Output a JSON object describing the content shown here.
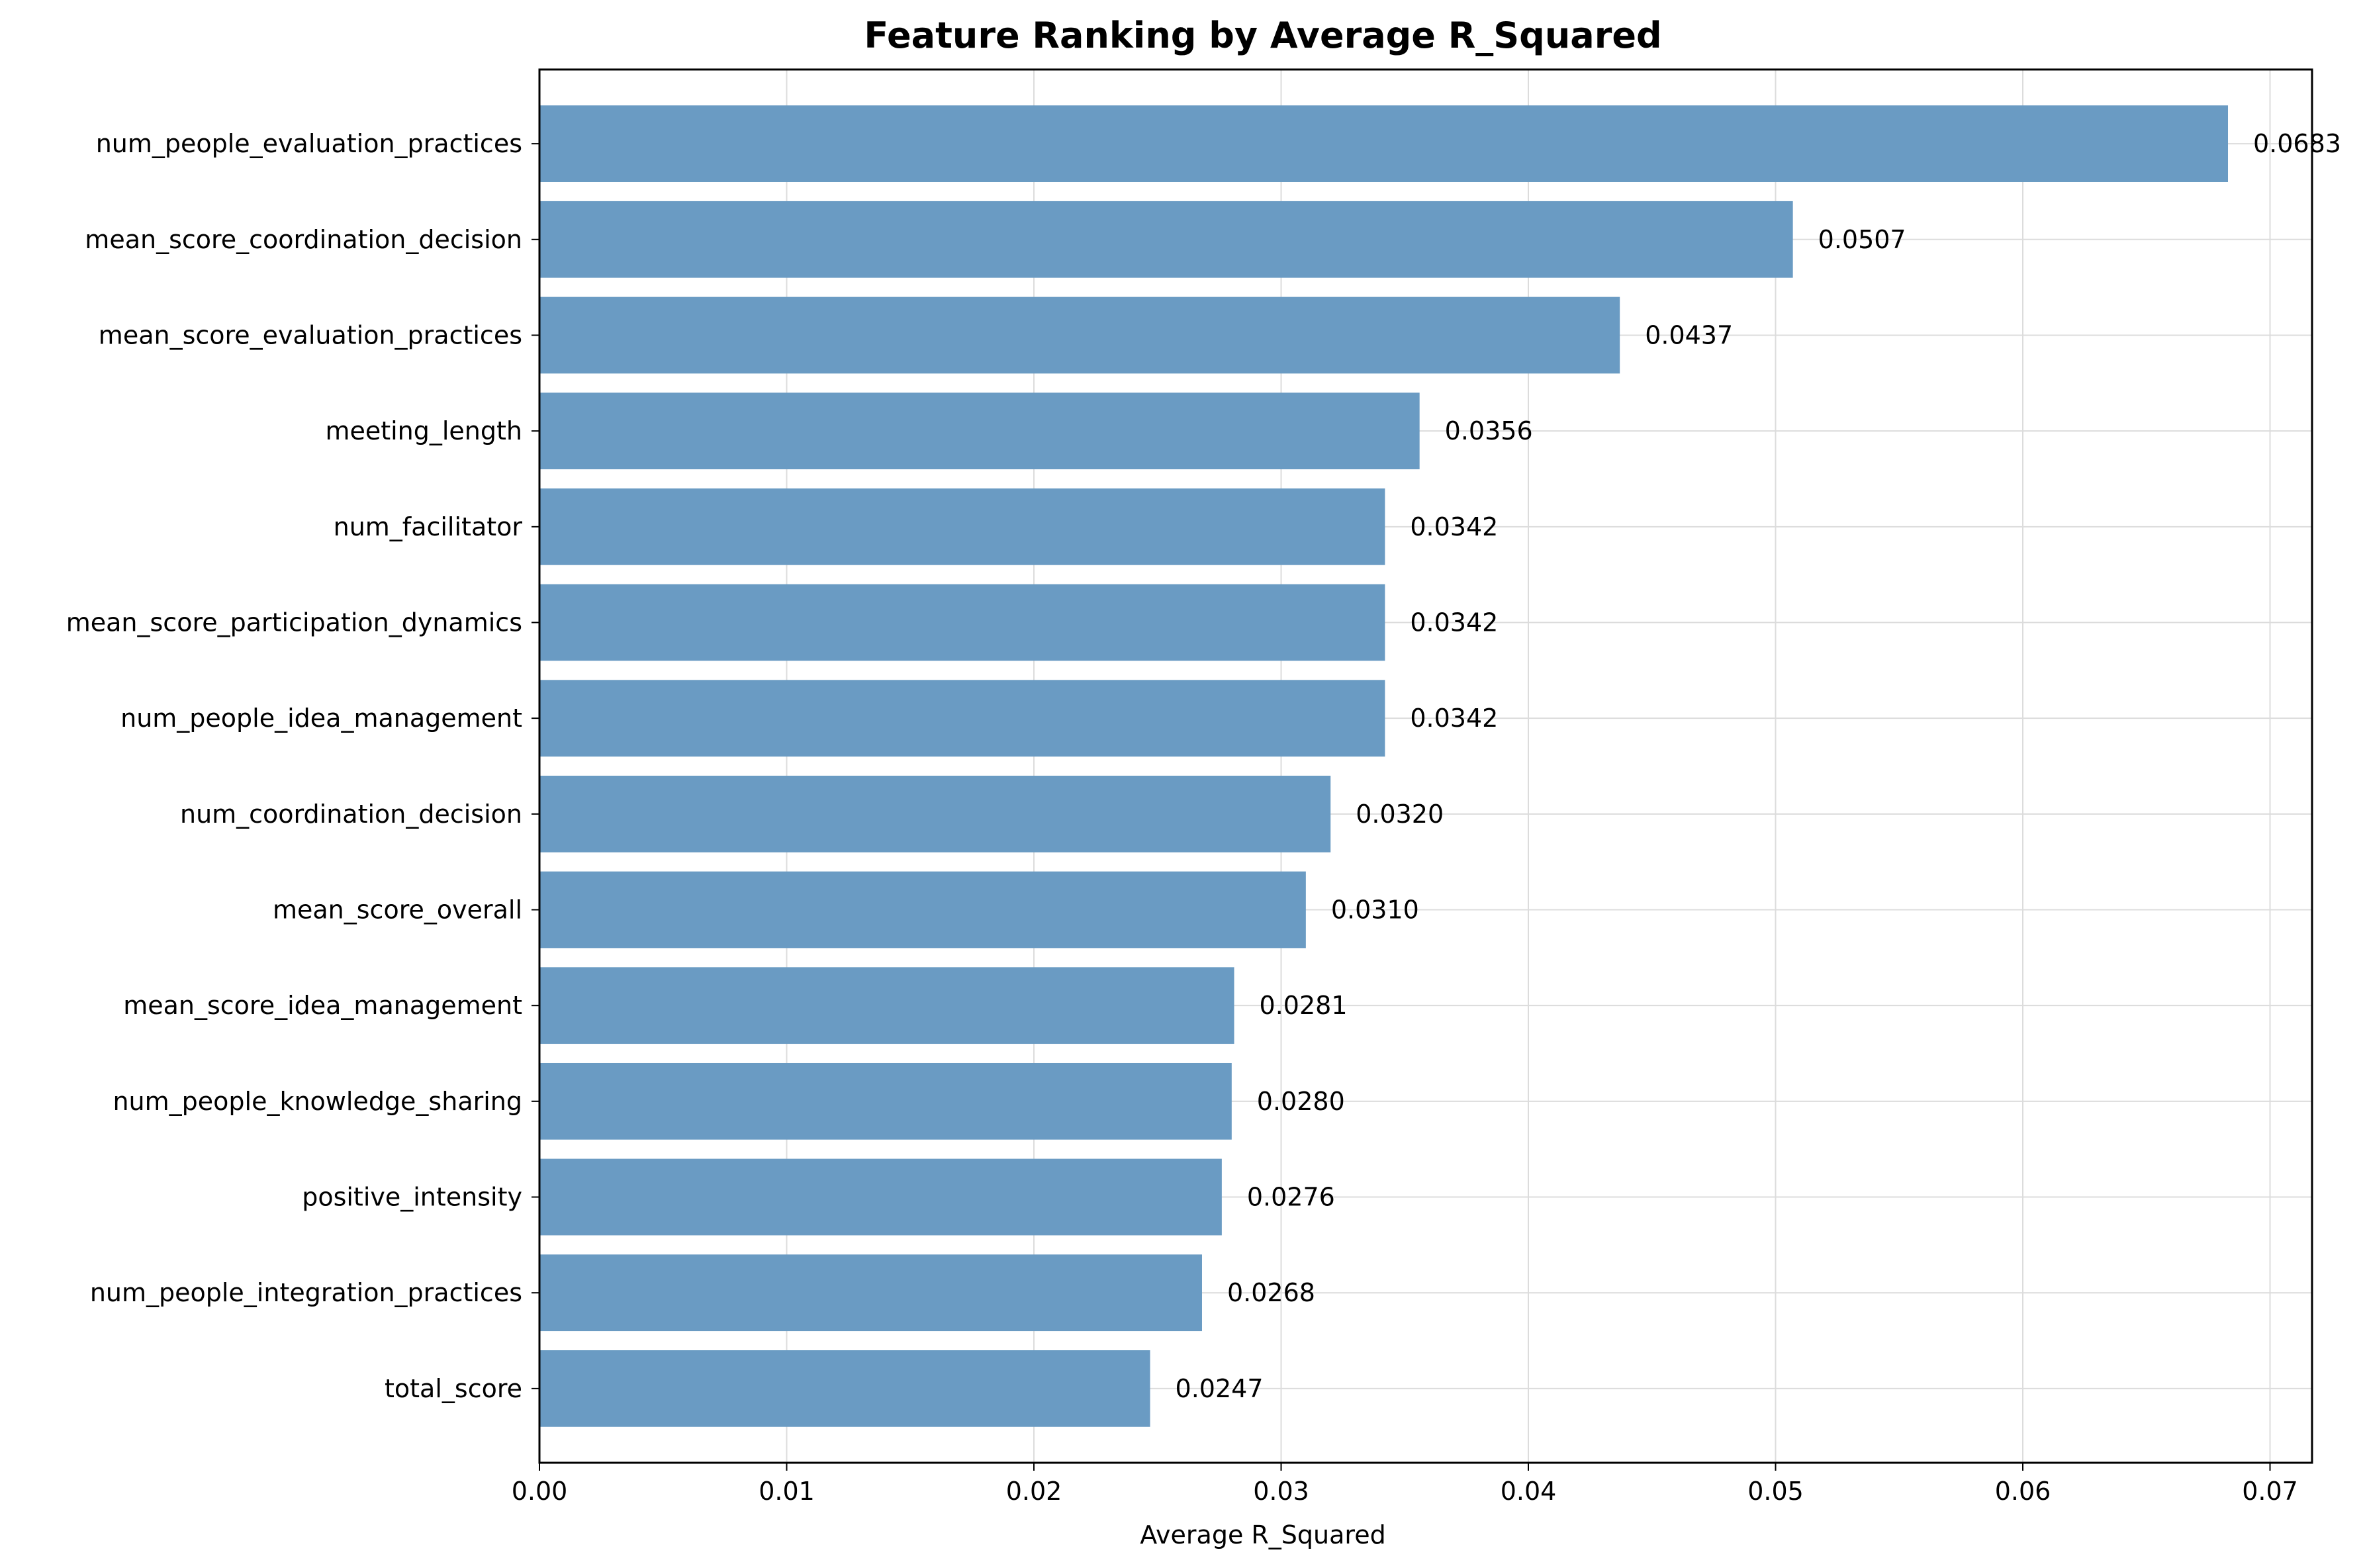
{
  "chart_data": {
    "type": "bar",
    "orientation": "horizontal",
    "title": "Feature Ranking by Average R_Squared",
    "xlabel": "Average R_Squared",
    "ylabel": "",
    "xlim": [
      0,
      0.0717
    ],
    "xticks": [
      0.0,
      0.01,
      0.02,
      0.03,
      0.04,
      0.05,
      0.06,
      0.07
    ],
    "xtick_labels": [
      "0.00",
      "0.01",
      "0.02",
      "0.03",
      "0.04",
      "0.05",
      "0.06",
      "0.07"
    ],
    "grid": true,
    "bar_color": "#6A9BC3",
    "categories": [
      "num_people_evaluation_practices",
      "mean_score_coordination_decision",
      "mean_score_evaluation_practices",
      "meeting_length",
      "num_facilitator",
      "mean_score_participation_dynamics",
      "num_people_idea_management",
      "num_coordination_decision",
      "mean_score_overall",
      "mean_score_idea_management",
      "num_people_knowledge_sharing",
      "positive_intensity",
      "num_people_integration_practices",
      "total_score"
    ],
    "values": [
      0.0683,
      0.0507,
      0.0437,
      0.0356,
      0.0342,
      0.0342,
      0.0342,
      0.032,
      0.031,
      0.0281,
      0.028,
      0.0276,
      0.0268,
      0.0247
    ],
    "value_labels": [
      "0.0683",
      "0.0507",
      "0.0437",
      "0.0356",
      "0.0342",
      "0.0342",
      "0.0342",
      "0.0320",
      "0.0310",
      "0.0281",
      "0.0280",
      "0.0276",
      "0.0268",
      "0.0247"
    ]
  }
}
